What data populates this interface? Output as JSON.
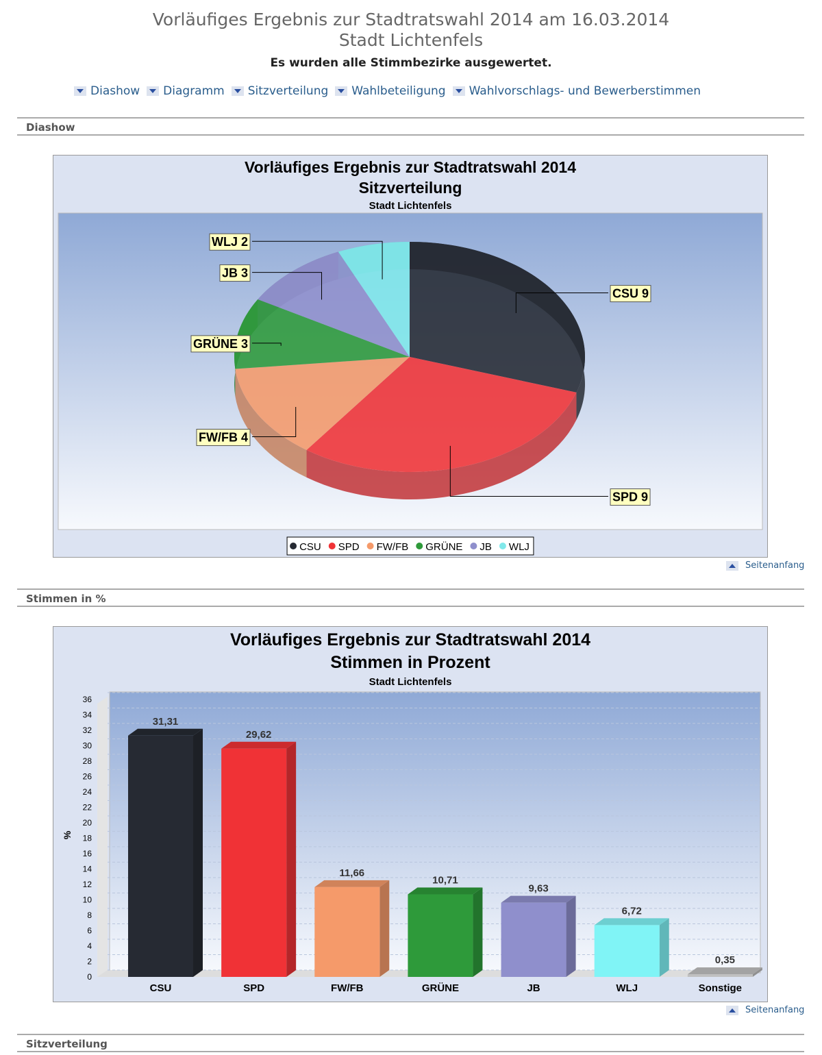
{
  "header": {
    "title": "Vorläufiges Ergebnis zur Stadtratswahl 2014 am 16.03.2014",
    "subtitle": "Stadt Lichtenfels",
    "status": "Es wurden alle Stimmbezirke ausgewertet."
  },
  "nav": [
    "Diashow",
    "Diagramm",
    "Sitzverteilung",
    "Wahlbeteiligung",
    "Wahlvorschlags- und Bewerberstimmen"
  ],
  "sections": [
    "Diashow",
    "Stimmen in %",
    "Sitzverteilung"
  ],
  "top_link": "Seitenanfang",
  "chart_data": [
    {
      "type": "pie",
      "title": "Vorläufiges Ergebnis zur Stadtratswahl 2014",
      "subtitle": "Sitzverteilung",
      "caption": "Stadt Lichtenfels",
      "categories": [
        "CSU",
        "SPD",
        "FW/FB",
        "GRÜNE",
        "JB",
        "WLJ"
      ],
      "values": [
        9,
        9,
        4,
        3,
        3,
        2
      ],
      "value_labels": [
        "CSU 9",
        "SPD 9",
        "FW/FB 4",
        "GRÜNE 3",
        "JB 3",
        "WLJ 2"
      ],
      "colors": [
        "#262a33",
        "#f03236",
        "#f59a6a",
        "#2e9a3a",
        "#8f8fcc",
        "#80e8ea"
      ],
      "legend": "bottom"
    },
    {
      "type": "bar",
      "title": "Vorläufiges Ergebnis zur Stadtratswahl 2014",
      "subtitle": "Stimmen in Prozent",
      "caption": "Stadt Lichtenfels",
      "ylabel": "%",
      "categories": [
        "CSU",
        "SPD",
        "FW/FB",
        "GRÜNE",
        "JB",
        "WLJ",
        "Sonstige"
      ],
      "values": [
        31.31,
        29.62,
        11.66,
        10.71,
        9.63,
        6.72,
        0.35
      ],
      "value_labels": [
        "31,31",
        "29,62",
        "11,66",
        "10,71",
        "9,63",
        "6,72",
        "0,35"
      ],
      "colors": [
        "#262a33",
        "#f03236",
        "#f59a6a",
        "#2e9a3a",
        "#8f8fcc",
        "#80f4f6",
        "#c0c0c0"
      ],
      "ylim": [
        0,
        36
      ],
      "yticks": [
        0,
        2,
        4,
        6,
        8,
        10,
        12,
        14,
        16,
        18,
        20,
        22,
        24,
        26,
        28,
        30,
        32,
        34,
        36
      ],
      "grid": true
    }
  ]
}
